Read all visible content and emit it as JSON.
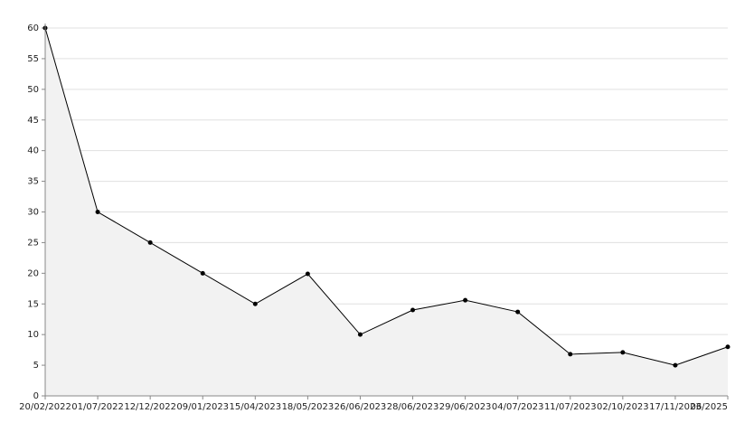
{
  "chart_data": {
    "type": "line",
    "categories": [
      "20/02/2022",
      "01/07/2022",
      "12/12/2022",
      "09/01/2023",
      "15/04/2023",
      "18/05/2023",
      "26/06/2023",
      "28/06/2023",
      "29/06/2023",
      "04/07/2023",
      "11/07/2023",
      "02/10/2023",
      "17/11/2023",
      "06/2025"
    ],
    "values": [
      60,
      30,
      25,
      20,
      15,
      19.9,
      10,
      14,
      15.6,
      13.7,
      6.8,
      7.1,
      5,
      8
    ],
    "color": "#000000",
    "fill": "#f2f2f2",
    "ylim": [
      0,
      60
    ],
    "yticks": [
      0,
      5,
      10,
      15,
      20,
      25,
      30,
      35,
      40,
      45,
      50,
      55,
      60
    ],
    "grid": true
  }
}
